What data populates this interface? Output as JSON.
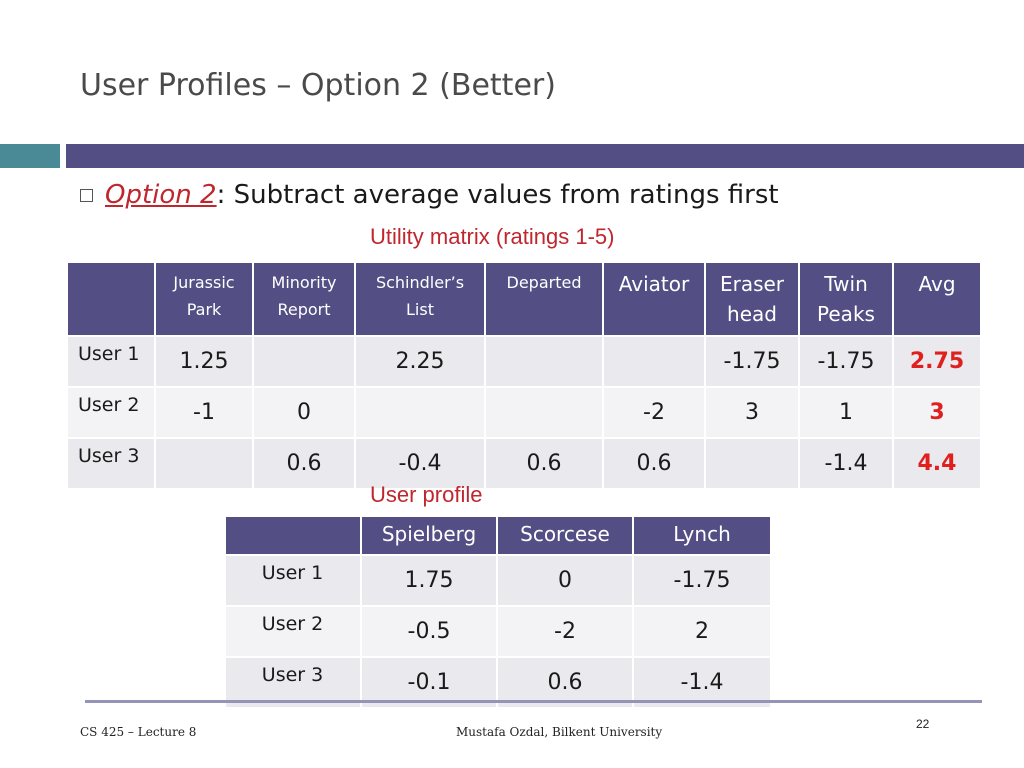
{
  "slide": {
    "title": "User Profiles – Option 2 (Better)",
    "bullet": {
      "option_label": "Option 2",
      "text": ": Subtract average values from ratings first"
    },
    "utility_caption": "Utility matrix (ratings 1-5)",
    "profile_caption": "User profile"
  },
  "utility_matrix": {
    "columns": [
      {
        "label": "Jurassic Park",
        "size": "small"
      },
      {
        "label": "Minority Report",
        "size": "small"
      },
      {
        "label": "Schindler’s List",
        "size": "small"
      },
      {
        "label": "Departed",
        "size": "small"
      },
      {
        "label": "Aviator",
        "size": "large"
      },
      {
        "label": "Eraser head",
        "size": "large"
      },
      {
        "label": "Twin Peaks",
        "size": "large"
      },
      {
        "label": "Avg",
        "size": "large"
      }
    ],
    "rows": [
      {
        "label": "User 1",
        "cells": [
          "1.25",
          "",
          "2.25",
          "",
          "",
          "-1.75",
          "-1.75",
          "2.75"
        ]
      },
      {
        "label": "User 2",
        "cells": [
          "-1",
          "0",
          "",
          "",
          "-2",
          "3",
          "1",
          "3"
        ]
      },
      {
        "label": "User 3",
        "cells": [
          "",
          "0.6",
          "-0.4",
          "0.6",
          "0.6",
          "",
          "-1.4",
          "4.4"
        ]
      }
    ]
  },
  "user_profile": {
    "columns": [
      "Spielberg",
      "Scorcese",
      "Lynch"
    ],
    "rows": [
      {
        "label": "User 1",
        "cells": [
          "1.75",
          "0",
          "-1.75"
        ]
      },
      {
        "label": "User 2",
        "cells": [
          "-0.5",
          "-2",
          "2"
        ]
      },
      {
        "label": "User 3",
        "cells": [
          "-0.1",
          "0.6",
          "-1.4"
        ]
      }
    ]
  },
  "footer": {
    "left": "CS 425 – Lecture 8",
    "center": "Mustafa Ozdal, Bilkent University",
    "page_number": "22"
  },
  "colors": {
    "header_band": "#534f85",
    "accent_red": "#c0262d",
    "avg_red": "#e0201f"
  }
}
